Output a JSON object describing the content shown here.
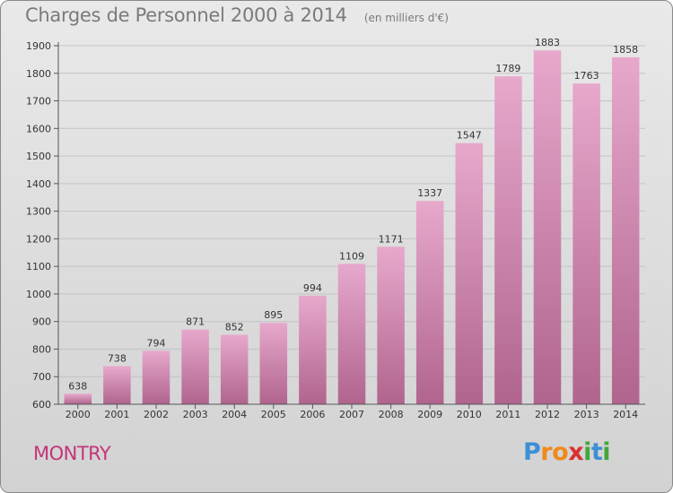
{
  "header": {
    "title": "Charges de Personnel 2000 à 2014",
    "subtitle": "(en milliers d'€)"
  },
  "footer": {
    "place": "MONTRY",
    "logo": {
      "text": "Proxiti",
      "letters": [
        {
          "ch": "P",
          "color": "#3d8fd6"
        },
        {
          "ch": "r",
          "color": "#f08a1c"
        },
        {
          "ch": "o",
          "color": "#f08a1c"
        },
        {
          "ch": "x",
          "color": "#d93030"
        },
        {
          "ch": "i",
          "color": "#43a63b"
        },
        {
          "ch": "t",
          "color": "#3d8fd6"
        },
        {
          "ch": "i",
          "color": "#43a63b"
        }
      ]
    }
  },
  "colors": {
    "bar_top": "#e7a8cc",
    "bar_bottom": "#b0648e",
    "axis": "#555555",
    "grid": "#c4c4c4",
    "text": "#333333"
  },
  "chart_data": {
    "type": "bar",
    "title": "Charges de Personnel 2000 à 2014",
    "subtitle": "(en milliers d'€)",
    "xlabel": "",
    "ylabel": "",
    "categories": [
      "2000",
      "2001",
      "2002",
      "2003",
      "2004",
      "2005",
      "2006",
      "2007",
      "2008",
      "2009",
      "2010",
      "2011",
      "2012",
      "2013",
      "2014"
    ],
    "values": [
      638,
      738,
      794,
      871,
      852,
      895,
      994,
      1109,
      1171,
      1337,
      1547,
      1789,
      1883,
      1763,
      1858
    ],
    "ylim": [
      600,
      1900
    ],
    "yticks": [
      600,
      700,
      800,
      900,
      1000,
      1100,
      1200,
      1300,
      1400,
      1500,
      1600,
      1700,
      1800,
      1900
    ],
    "grid": true,
    "data_labels": true
  }
}
